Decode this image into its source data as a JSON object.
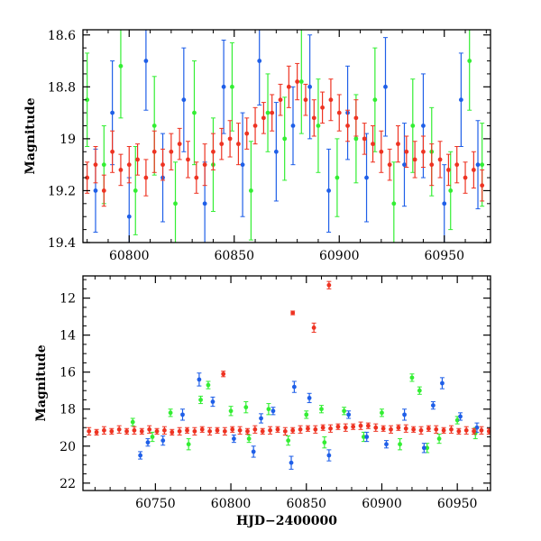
{
  "colors": {
    "green": "#33ee33",
    "blue": "#1f5fe8",
    "red": "#ee3322",
    "axis": "#000000"
  },
  "chart_data": [
    {
      "type": "scatter",
      "title": "",
      "xlabel": "",
      "ylabel": "Magnitude",
      "xlim": [
        60778,
        60972
      ],
      "ylim": [
        19.4,
        18.58
      ],
      "y_inverted": true,
      "grid": false,
      "error_bars": true,
      "xticks": [
        60800,
        60850,
        60900,
        60950
      ],
      "xtick_labels": [
        "60800",
        "60850",
        "60900",
        "60950"
      ],
      "yticks": [
        18.6,
        18.8,
        19,
        19.2,
        19.4
      ],
      "ytick_labels": [
        "18.6",
        "18.8",
        "19",
        "19.2",
        "19.4"
      ],
      "series": [
        {
          "color_key": "green",
          "x": [
            60780,
            60788,
            60796,
            60803,
            60812,
            60822,
            60831,
            60840,
            60849,
            60858,
            60866,
            60874,
            60882,
            60890,
            60899,
            60908,
            60917,
            60926,
            60935,
            60944,
            60953,
            60962,
            60968
          ],
          "y": [
            18.85,
            19.1,
            18.72,
            19.2,
            18.95,
            19.25,
            18.9,
            19.1,
            18.8,
            19.2,
            18.9,
            19.0,
            18.78,
            18.95,
            19.15,
            19.0,
            18.85,
            19.25,
            18.95,
            19.05,
            19.2,
            18.7,
            19.1
          ],
          "yerr": [
            0.18,
            0.15,
            0.2,
            0.17,
            0.19,
            0.16,
            0.2,
            0.18,
            0.17,
            0.19,
            0.15,
            0.16,
            0.2,
            0.18,
            0.15,
            0.17,
            0.2,
            0.16,
            0.18,
            0.17,
            0.15,
            0.19,
            0.16
          ]
        },
        {
          "color_key": "blue",
          "x": [
            60784,
            60792,
            60800,
            60808,
            60816,
            60826,
            60836,
            60845,
            60854,
            60862,
            60870,
            60878,
            60886,
            60895,
            60904,
            60913,
            60922,
            60931,
            60940,
            60950,
            60958,
            60966
          ],
          "y": [
            19.2,
            18.9,
            19.3,
            18.7,
            19.15,
            18.85,
            19.25,
            18.8,
            19.1,
            18.7,
            19.05,
            18.95,
            18.8,
            19.2,
            18.9,
            19.15,
            18.8,
            19.1,
            18.95,
            19.25,
            18.85,
            19.1
          ],
          "yerr": [
            0.16,
            0.2,
            0.15,
            0.19,
            0.17,
            0.2,
            0.16,
            0.18,
            0.2,
            0.17,
            0.19,
            0.15,
            0.2,
            0.16,
            0.18,
            0.17,
            0.19,
            0.16,
            0.2,
            0.15,
            0.18,
            0.17
          ]
        },
        {
          "color_key": "red",
          "x": [
            60780,
            60784,
            60788,
            60792,
            60796,
            60800,
            60804,
            60808,
            60812,
            60816,
            60820,
            60824,
            60828,
            60832,
            60836,
            60840,
            60844,
            60848,
            60852,
            60856,
            60860,
            60864,
            60868,
            60872,
            60876,
            60880,
            60884,
            60888,
            60892,
            60896,
            60900,
            60904,
            60908,
            60912,
            60916,
            60920,
            60924,
            60928,
            60932,
            60936,
            60940,
            60944,
            60948,
            60952,
            60956,
            60960,
            60964,
            60968
          ],
          "y": [
            19.15,
            19.1,
            19.2,
            19.05,
            19.12,
            19.1,
            19.08,
            19.15,
            19.05,
            19.1,
            19.05,
            19.02,
            19.08,
            19.15,
            19.1,
            19.05,
            19.02,
            19.0,
            19.02,
            18.98,
            18.95,
            18.92,
            18.9,
            18.85,
            18.8,
            18.78,
            18.85,
            18.92,
            18.88,
            18.85,
            18.9,
            18.95,
            18.92,
            19.0,
            19.02,
            19.05,
            19.1,
            19.02,
            19.05,
            19.08,
            19.05,
            19.1,
            19.08,
            19.12,
            19.1,
            19.15,
            19.12,
            19.18
          ],
          "yerr": [
            0.06,
            0.07,
            0.06,
            0.08,
            0.06,
            0.07,
            0.06,
            0.07,
            0.08,
            0.06,
            0.07,
            0.06,
            0.07,
            0.06,
            0.08,
            0.07,
            0.06,
            0.07,
            0.08,
            0.06,
            0.07,
            0.06,
            0.07,
            0.06,
            0.08,
            0.07,
            0.06,
            0.07,
            0.06,
            0.08,
            0.07,
            0.06,
            0.07,
            0.06,
            0.07,
            0.08,
            0.06,
            0.07,
            0.06,
            0.07,
            0.06,
            0.08,
            0.07,
            0.06,
            0.07,
            0.06,
            0.07,
            0.06
          ]
        }
      ]
    },
    {
      "type": "scatter",
      "title": "",
      "xlabel": "HJD−2400000",
      "ylabel": "Magnitude",
      "xlim": [
        60702,
        60972
      ],
      "ylim": [
        22.4,
        10.8
      ],
      "y_inverted": true,
      "grid": false,
      "error_bars": true,
      "xticks": [
        60750,
        60800,
        60850,
        60900,
        60950
      ],
      "xtick_labels": [
        "60750",
        "60800",
        "60850",
        "60900",
        "60950"
      ],
      "yticks": [
        12,
        14,
        16,
        18,
        20,
        22
      ],
      "ytick_labels": [
        "12",
        "14",
        "16",
        "18",
        "20",
        "22"
      ],
      "series": [
        {
          "color_key": "green",
          "x": [
            60735,
            60748,
            60760,
            60772,
            60785,
            60800,
            60812,
            60825,
            60838,
            60850,
            60862,
            60875,
            60888,
            60900,
            60912,
            60925,
            60938,
            60950,
            60962,
            60920,
            60930,
            60780,
            60810,
            60860
          ],
          "y": [
            18.7,
            19.5,
            18.2,
            19.9,
            16.7,
            18.1,
            19.6,
            18.0,
            19.7,
            18.3,
            19.8,
            18.1,
            19.5,
            18.2,
            19.9,
            17.0,
            19.6,
            18.6,
            19.3,
            16.3,
            20.1,
            17.5,
            17.9,
            18.0
          ],
          "yerr": [
            0.2,
            0.25,
            0.2,
            0.3,
            0.2,
            0.25,
            0.2,
            0.3,
            0.25,
            0.2,
            0.3,
            0.2,
            0.25,
            0.2,
            0.3,
            0.2,
            0.25,
            0.2,
            0.3,
            0.2,
            0.25,
            0.2,
            0.3,
            0.2
          ]
        },
        {
          "color_key": "blue",
          "x": [
            60740,
            60755,
            60768,
            60779,
            60788,
            60802,
            60815,
            60828,
            60840,
            60852,
            60865,
            60878,
            60890,
            60903,
            60915,
            60928,
            60940,
            60952,
            60963,
            60745,
            60820,
            60842,
            60934
          ],
          "y": [
            20.5,
            19.7,
            18.3,
            16.4,
            17.6,
            19.6,
            20.3,
            18.1,
            20.9,
            17.4,
            20.5,
            18.3,
            19.5,
            19.9,
            18.3,
            20.1,
            16.6,
            18.4,
            19.0,
            19.8,
            18.5,
            16.8,
            17.8
          ],
          "yerr": [
            0.2,
            0.25,
            0.3,
            0.35,
            0.25,
            0.2,
            0.3,
            0.2,
            0.35,
            0.25,
            0.3,
            0.2,
            0.25,
            0.2,
            0.3,
            0.25,
            0.3,
            0.2,
            0.25,
            0.2,
            0.25,
            0.3,
            0.2
          ]
        },
        {
          "color_key": "red",
          "x": [
            60706,
            60711,
            60716,
            60721,
            60726,
            60731,
            60736,
            60741,
            60746,
            60751,
            60756,
            60761,
            60766,
            60771,
            60776,
            60781,
            60786,
            60791,
            60796,
            60801,
            60806,
            60811,
            60816,
            60821,
            60826,
            60831,
            60836,
            60841,
            60846,
            60851,
            60856,
            60861,
            60866,
            60871,
            60876,
            60881,
            60886,
            60891,
            60896,
            60901,
            60906,
            60911,
            60916,
            60921,
            60926,
            60931,
            60936,
            60941,
            60946,
            60951,
            60956,
            60961,
            60966,
            60971,
            60795,
            60841,
            60855,
            60865
          ],
          "y": [
            19.2,
            19.25,
            19.15,
            19.2,
            19.1,
            19.2,
            19.15,
            19.2,
            19.1,
            19.2,
            19.15,
            19.25,
            19.2,
            19.15,
            19.2,
            19.1,
            19.2,
            19.15,
            19.2,
            19.1,
            19.15,
            19.2,
            19.1,
            19.2,
            19.15,
            19.1,
            19.2,
            19.15,
            19.1,
            19.05,
            19.1,
            19.0,
            19.05,
            18.95,
            19.0,
            18.95,
            18.9,
            18.9,
            19.0,
            19.05,
            19.1,
            19.0,
            19.05,
            19.1,
            19.15,
            19.05,
            19.1,
            19.15,
            19.1,
            19.2,
            19.15,
            19.2,
            19.15,
            19.2,
            16.1,
            12.8,
            13.6,
            11.3
          ],
          "yerr": [
            0.2,
            0.15,
            0.2,
            0.15,
            0.2,
            0.15,
            0.2,
            0.15,
            0.2,
            0.15,
            0.2,
            0.15,
            0.2,
            0.15,
            0.2,
            0.15,
            0.2,
            0.15,
            0.2,
            0.15,
            0.2,
            0.15,
            0.2,
            0.15,
            0.2,
            0.15,
            0.2,
            0.15,
            0.2,
            0.15,
            0.2,
            0.15,
            0.2,
            0.15,
            0.2,
            0.15,
            0.2,
            0.15,
            0.2,
            0.15,
            0.2,
            0.15,
            0.2,
            0.15,
            0.2,
            0.15,
            0.2,
            0.15,
            0.2,
            0.15,
            0.2,
            0.15,
            0.2,
            0.15,
            0.15,
            0.1,
            0.25,
            0.2
          ]
        }
      ]
    }
  ]
}
